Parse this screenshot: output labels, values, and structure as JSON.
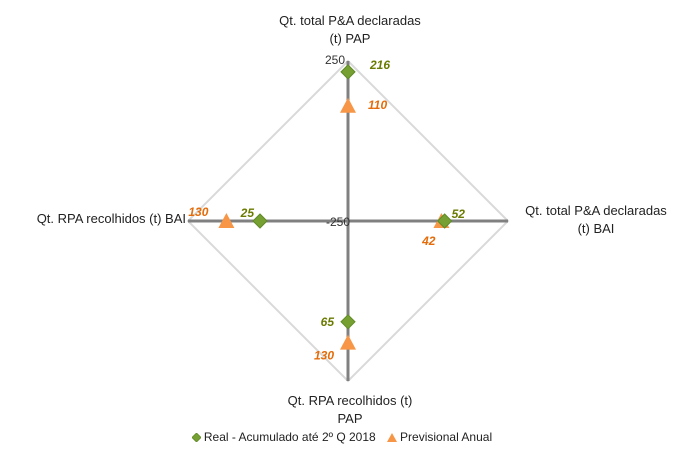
{
  "chart_data": {
    "type": "radar",
    "axes": [
      {
        "label_line1": "Qt. total P&A declaradas",
        "label_line2": "(t) PAP"
      },
      {
        "label_line1": "Qt. total P&A declaradas",
        "label_line2": "(t) BAI"
      },
      {
        "label_line1": "Qt. RPA recolhidos (t)",
        "label_line2": "PAP"
      },
      {
        "label_line1": "Qt. RPA recolhidos (t) BAI",
        "label_line2": ""
      }
    ],
    "scale": {
      "min": -250,
      "max": 250,
      "tick_labels": [
        "250",
        "-250"
      ]
    },
    "series": [
      {
        "name": "Real - Acumulado até 2º Q 2018",
        "marker": "diamond",
        "color": "#77A033",
        "label_color": "#6B7A00",
        "values": [
          216,
          52,
          65,
          25
        ],
        "labels": [
          "216",
          "52",
          "65",
          "25"
        ]
      },
      {
        "name": "Previsional Anual",
        "marker": "triangle",
        "color": "#F79646",
        "label_color": "#E46C0A",
        "values": [
          110,
          42,
          130,
          130
        ],
        "labels": [
          "110",
          "42",
          "130",
          "130"
        ]
      }
    ],
    "legend_position": "bottom",
    "grid": true
  }
}
